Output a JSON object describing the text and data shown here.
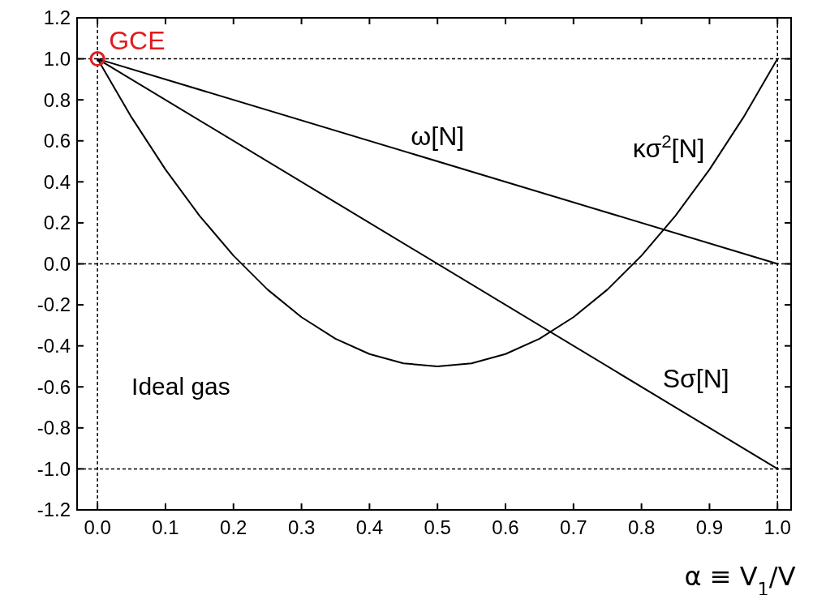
{
  "chart_data": {
    "type": "line",
    "xlabel": "α ≡ V$_{1}$/V",
    "annotations": [
      "Ideal gas"
    ],
    "xlim": [
      -0.03,
      1.02
    ],
    "ylim": [
      -1.2,
      1.2
    ],
    "xticks": [
      {
        "value": 0,
        "label": "0.0"
      },
      {
        "value": 0.1,
        "label": "0.1"
      },
      {
        "value": 0.2,
        "label": "0.2"
      },
      {
        "value": 0.3,
        "label": "0.3"
      },
      {
        "value": 0.4,
        "label": "0.4"
      },
      {
        "value": 0.5,
        "label": "0.5"
      },
      {
        "value": 0.6,
        "label": "0.6"
      },
      {
        "value": 0.7,
        "label": "0.7"
      },
      {
        "value": 0.8,
        "label": "0.8"
      },
      {
        "value": 0.9,
        "label": "0.9"
      },
      {
        "value": 1,
        "label": "1.0"
      }
    ],
    "yticks": [
      {
        "value": -1.2,
        "label": "-1.2"
      },
      {
        "value": -1,
        "label": "-1.0"
      },
      {
        "value": -0.8,
        "label": "-0.8"
      },
      {
        "value": -0.6,
        "label": "-0.6"
      },
      {
        "value": -0.4,
        "label": "-0.4"
      },
      {
        "value": -0.2,
        "label": "-0.2"
      },
      {
        "value": 0,
        "label": "0.0"
      },
      {
        "value": 0.2,
        "label": "0.2"
      },
      {
        "value": 0.4,
        "label": "0.4"
      },
      {
        "value": 0.6,
        "label": "0.6"
      },
      {
        "value": 0.8,
        "label": "0.8"
      },
      {
        "value": 1,
        "label": "1.0"
      },
      {
        "value": 1.2,
        "label": "1.2"
      }
    ],
    "grid": false,
    "line_style": "solid",
    "marker": "none",
    "ref_lines": [
      {
        "axis": "y",
        "value": 1,
        "line_style": "dashed",
        "color": "#000000"
      },
      {
        "axis": "y",
        "value": 0,
        "line_style": "dashed",
        "color": "#000000"
      },
      {
        "axis": "y",
        "value": -1,
        "line_style": "dashed",
        "color": "#000000"
      },
      {
        "axis": "x",
        "value": 0,
        "line_style": "dashed",
        "color": "#000000"
      },
      {
        "axis": "x",
        "value": 1,
        "line_style": "dashed",
        "color": "#000000"
      }
    ],
    "series": [
      {
        "name": "ω[N]",
        "color": "#000000",
        "x": [
          0,
          1
        ],
        "values": [
          1,
          0
        ]
      },
      {
        "name": "Sσ[N]",
        "color": "#000000",
        "x": [
          0,
          1
        ],
        "values": [
          1,
          -1
        ]
      },
      {
        "name": "κσ$^{2}$[N]",
        "color": "#000000",
        "x": [
          0,
          0.05,
          0.1,
          0.15,
          0.2,
          0.25,
          0.3,
          0.35,
          0.4,
          0.45,
          0.5,
          0.55,
          0.6,
          0.65,
          0.7,
          0.75,
          0.8,
          0.85,
          0.9,
          0.95,
          1
        ],
        "values": [
          1,
          0.715,
          0.46,
          0.235,
          0.04,
          -0.125,
          -0.26,
          -0.365,
          -0.44,
          -0.485,
          -0.5,
          -0.485,
          -0.44,
          -0.365,
          -0.26,
          -0.125,
          0.04,
          0.235,
          0.46,
          0.715,
          1
        ]
      },
      {
        "name": "GCE",
        "type": "scatter",
        "marker": "circle",
        "color": "#e31a1c",
        "x": [
          0
        ],
        "values": [
          1
        ]
      }
    ]
  }
}
